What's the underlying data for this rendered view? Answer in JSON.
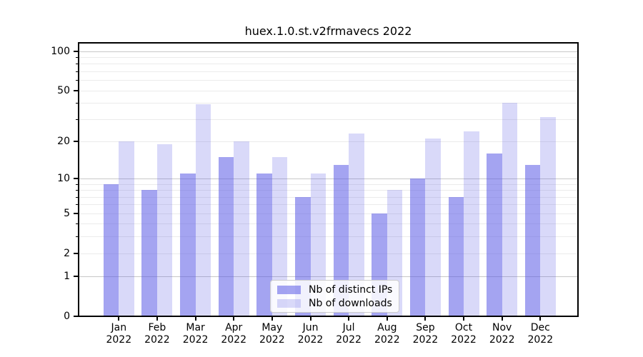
{
  "title": "huex.1.0.st.v2frmavecs 2022",
  "colors": {
    "ips_fill": "rgba(90,90,230,0.55)",
    "downloads_fill": "rgba(90,90,230,0.23)",
    "major_grid": "#c8c8c8",
    "minor_grid": "#ebebeb",
    "axis": "#000000"
  },
  "chart_data": {
    "type": "bar",
    "title": "huex.1.0.st.v2frmavecs 2022",
    "categories": [
      "Jan",
      "Feb",
      "Mar",
      "Apr",
      "May",
      "Jun",
      "Jul",
      "Aug",
      "Sep",
      "Oct",
      "Nov",
      "Dec"
    ],
    "year": "2022",
    "series": [
      {
        "name": "Nb of distinct IPs",
        "values": [
          9,
          8,
          11,
          15,
          11,
          7,
          13,
          5,
          10,
          7,
          16,
          13
        ]
      },
      {
        "name": "Nb of downloads",
        "values": [
          20,
          19,
          39,
          20,
          15,
          11,
          23,
          8,
          21,
          24,
          40,
          31
        ]
      }
    ],
    "xlabel": "",
    "ylabel": "",
    "y_axis": {
      "scale": "log1p",
      "tick_labels": [
        0,
        1,
        2,
        5,
        10,
        20,
        50,
        100
      ],
      "major_gridlines": [
        1,
        10,
        100
      ],
      "minor_gridlines": [
        2,
        3,
        4,
        5,
        6,
        7,
        8,
        9,
        20,
        30,
        40,
        50,
        60,
        70,
        80,
        90
      ],
      "minor_tick_marks": [
        3,
        4,
        6,
        7,
        8,
        9,
        30,
        40,
        60,
        70,
        80,
        90
      ],
      "ylim": [
        0,
        115
      ]
    },
    "grid": true,
    "legend_position": "lower center"
  }
}
